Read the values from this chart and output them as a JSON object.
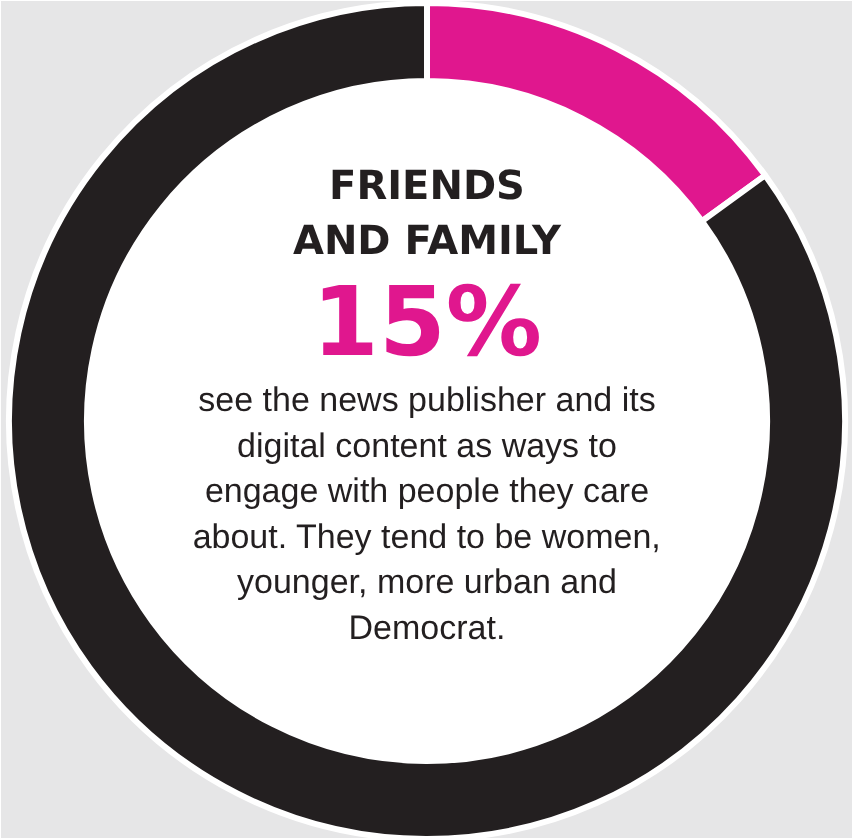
{
  "chart_data": {
    "type": "donut",
    "title": "FRIENDS\nAND FAMILY",
    "categories": [
      null,
      null
    ],
    "values": [
      15,
      85
    ],
    "colors": [
      "#e0178e",
      "#231f20"
    ],
    "value_labels": [
      "15%",
      null
    ],
    "annotations": [
      "see the news publisher and its digital content as ways to engage with people they care about. They tend to be women, younger, more urban and Democrat."
    ]
  }
}
